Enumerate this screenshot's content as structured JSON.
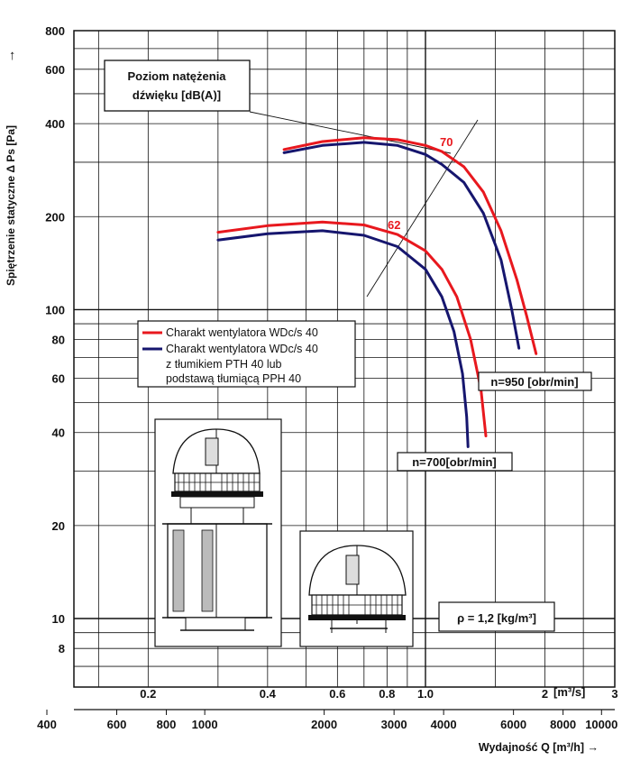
{
  "chart_data": {
    "type": "line",
    "x_scale": "log",
    "y_scale": "log",
    "xlim_m3s": [
      0.13,
      3
    ],
    "ylim": [
      6,
      800
    ],
    "grid": true,
    "ylabel": "Spiętrzenie statyczne Δ Ps [Pa]",
    "ylabel_arrow": "→",
    "x_top_unit": "[m³/s]",
    "x_bottom_label": "Wydajność Q [m³/h] →",
    "y_ticks": [
      {
        "v": 800,
        "label": "800"
      },
      {
        "v": 600,
        "label": "600"
      },
      {
        "v": 400,
        "label": "400"
      },
      {
        "v": 200,
        "label": "200"
      },
      {
        "v": 100,
        "label": "100"
      },
      {
        "v": 80,
        "label": "80"
      },
      {
        "v": 60,
        "label": "60"
      },
      {
        "v": 40,
        "label": "40"
      },
      {
        "v": 20,
        "label": "20"
      },
      {
        "v": 10,
        "label": "10"
      },
      {
        "v": 8,
        "label": "8"
      }
    ],
    "x_top_ticks": [
      {
        "v": 0.2,
        "label": "0.2"
      },
      {
        "v": 0.4,
        "label": "0.4"
      },
      {
        "v": 0.6,
        "label": "0.6"
      },
      {
        "v": 0.8,
        "label": "0.8"
      },
      {
        "v": 1.0,
        "label": "1.0"
      },
      {
        "v": 2,
        "label": "2"
      },
      {
        "v": 3,
        "label": "3"
      }
    ],
    "x_bottom_ticks": [
      {
        "v": 400,
        "label": "400"
      },
      {
        "v": 600,
        "label": "600"
      },
      {
        "v": 800,
        "label": "800"
      },
      {
        "v": 1000,
        "label": "1000"
      },
      {
        "v": 2000,
        "label": "2000"
      },
      {
        "v": 3000,
        "label": "3000"
      },
      {
        "v": 4000,
        "label": "4000"
      },
      {
        "v": 6000,
        "label": "6000"
      },
      {
        "v": 8000,
        "label": "8000"
      },
      {
        "v": 10000,
        "label": "10000"
      }
    ],
    "series": [
      {
        "name": "Charakt wentylatora WDc/s 40",
        "speed": "n=950 [obr/min]",
        "color": "#e8181e",
        "points": [
          [
            0.44,
            330
          ],
          [
            0.55,
            350
          ],
          [
            0.7,
            360
          ],
          [
            0.85,
            355
          ],
          [
            1.0,
            340
          ],
          [
            1.1,
            325
          ],
          [
            1.25,
            290
          ],
          [
            1.4,
            240
          ],
          [
            1.55,
            180
          ],
          [
            1.7,
            125
          ],
          [
            1.8,
            95
          ],
          [
            1.9,
            72
          ]
        ]
      },
      {
        "name": "Charakt wentylatora WDc/s 40 z tłumikiem PTH 40 lub podstawą tłumiącą PPH 40",
        "speed": "n=950 [obr/min]",
        "color": "#16166e",
        "points": [
          [
            0.44,
            322
          ],
          [
            0.55,
            340
          ],
          [
            0.7,
            348
          ],
          [
            0.85,
            340
          ],
          [
            1.0,
            318
          ],
          [
            1.1,
            295
          ],
          [
            1.25,
            258
          ],
          [
            1.4,
            205
          ],
          [
            1.55,
            145
          ],
          [
            1.65,
            100
          ],
          [
            1.72,
            75
          ]
        ]
      },
      {
        "name": "Charakt wentylatora WDc/s 40",
        "speed": "n=700[obr/min]",
        "color": "#e8181e",
        "points": [
          [
            0.3,
            178
          ],
          [
            0.4,
            187
          ],
          [
            0.55,
            192
          ],
          [
            0.7,
            188
          ],
          [
            0.85,
            175
          ],
          [
            1.0,
            155
          ],
          [
            1.1,
            135
          ],
          [
            1.2,
            110
          ],
          [
            1.3,
            80
          ],
          [
            1.38,
            55
          ],
          [
            1.42,
            39
          ]
        ]
      },
      {
        "name": "Charakt wentylatora WDc/s 40 z tłumikiem PTH 40 lub podstawą tłumiącą PPH 40",
        "speed": "n=700[obr/min]",
        "color": "#16166e",
        "points": [
          [
            0.3,
            168
          ],
          [
            0.4,
            176
          ],
          [
            0.55,
            180
          ],
          [
            0.7,
            174
          ],
          [
            0.85,
            160
          ],
          [
            1.0,
            135
          ],
          [
            1.1,
            110
          ],
          [
            1.18,
            85
          ],
          [
            1.24,
            62
          ],
          [
            1.27,
            45
          ],
          [
            1.28,
            36
          ]
        ]
      }
    ],
    "annotations": {
      "callout_title_line1": "Poziom natężenia",
      "callout_title_line2": "dźwięku [dB(A)]",
      "sound_70": "70",
      "sound_62": "62",
      "speed_950": "n=950 [obr/min]",
      "speed_700": "n=700[obr/min]",
      "density": "ρ = 1,2 [kg/m³]"
    },
    "legend": {
      "placement": "middle-left",
      "entries": [
        {
          "color": "#e8181e",
          "lines": [
            "Charakt wentylatora WDc/s 40"
          ]
        },
        {
          "color": "#16166e",
          "lines": [
            "Charakt wentylatora WDc/s 40",
            "z tłumikiem PTH 40 lub",
            "podstawą tłumiącą PPH 40"
          ]
        }
      ]
    }
  },
  "images": {
    "fan_with_silencer": "fan-with-silencer-drawing",
    "fan_roof": "roof-fan-drawing"
  }
}
